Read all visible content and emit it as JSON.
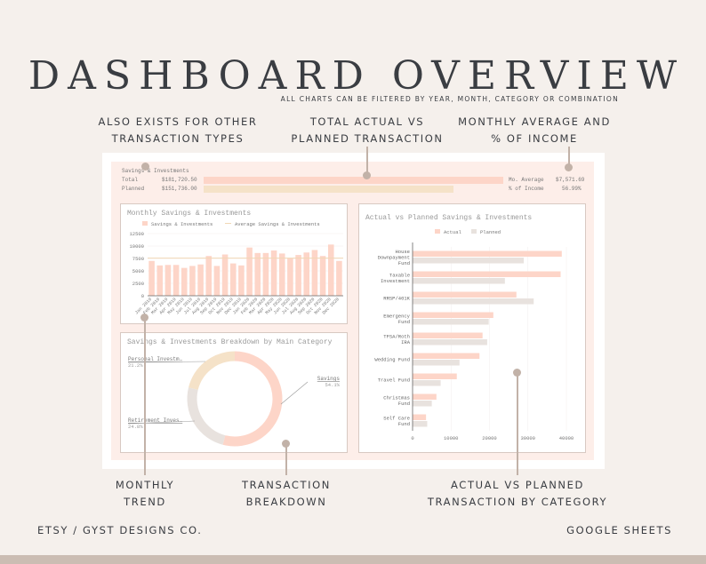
{
  "header": {
    "title": "DASHBOARD OVERVIEW",
    "subtitle": "ALL CHARTS CAN BE FILTERED BY YEAR, MONTH, CATEGORY OR COMBINATION"
  },
  "annotations": {
    "top_left": [
      "ALSO EXISTS FOR OTHER",
      "TRANSACTION TYPES"
    ],
    "top_mid": [
      "TOTAL ACTUAL VS",
      "PLANNED TRANSACTION"
    ],
    "top_right": [
      "MONTHLY AVERAGE AND",
      "% OF INCOME"
    ],
    "bottom_left": [
      "MONTHLY",
      "TREND"
    ],
    "bottom_mid": [
      "TRANSACTION",
      "BREAKDOWN"
    ],
    "bottom_right": [
      "ACTUAL VS PLANNED",
      "TRANSACTION BY CATEGORY"
    ]
  },
  "footer": {
    "left": "ETSY / GYST DESIGNS CO.",
    "right": "GOOGLE SHEETS"
  },
  "summary": {
    "section": "Savings & Investments",
    "total_label": "Total",
    "total_value": "$181,720.50",
    "planned_label": "Planned",
    "planned_value": "$151,736.00",
    "avg_label": "Mo. Average",
    "avg_value": "$7,571.69",
    "income_label": "% of Income",
    "income_value": "56.99%",
    "planned_fraction": 0.835
  },
  "colors": {
    "actual": "#fdd5c8",
    "planned": "#f5e2c8",
    "grey": "#e8e2de",
    "avg_line": "#f1d7b5"
  },
  "chart_data": [
    {
      "type": "bar",
      "title": "Monthly Savings & Investments",
      "legend": [
        "Savings & Investments",
        "Average Savings & Investments"
      ],
      "ylim": [
        0,
        12500
      ],
      "yticks": [
        0,
        2500,
        5000,
        7500,
        10000,
        12500
      ],
      "average": 7571.69,
      "categories": [
        "Jan 2019",
        "Feb 2019",
        "Mar 2019",
        "Apr 2019",
        "May 2019",
        "Jun 2019",
        "Jul 2019",
        "Aug 2019",
        "Sep 2019",
        "Oct 2019",
        "Nov 2019",
        "Dec 2019",
        "Jan 2020",
        "Feb 2020",
        "Mar 2020",
        "Apr 2020",
        "May 2020",
        "Jun 2020",
        "Jul 2020",
        "Aug 2020",
        "Sep 2020",
        "Oct 2020",
        "Nov 2020",
        "Dec 2020"
      ],
      "values": [
        7000,
        6100,
        6200,
        6200,
        5600,
        6000,
        6300,
        8000,
        6000,
        8300,
        6500,
        6100,
        9700,
        8600,
        8600,
        9100,
        8500,
        7600,
        8200,
        8700,
        9200,
        8000,
        10300,
        7000
      ]
    },
    {
      "type": "pie",
      "title": "Savings & Investments Breakdown by Main Category",
      "slices": [
        {
          "label": "Savings",
          "pct": "54.1%",
          "value": 54.1
        },
        {
          "label": "Retirement Inves…",
          "pct": "24.8%",
          "value": 24.8
        },
        {
          "label": "Personal Investm…",
          "pct": "21.2%",
          "value": 21.2
        }
      ]
    },
    {
      "type": "bar",
      "title": "Actual vs Planned Savings & Investments",
      "legend": [
        "Actual",
        "Planned"
      ],
      "xlim": [
        0,
        40000
      ],
      "xticks": [
        0,
        10000,
        20000,
        30000,
        40000
      ],
      "categories": [
        [
          "House",
          "Downpayment",
          "Fund"
        ],
        [
          "Taxable",
          "Investment"
        ],
        [
          "RRSP/401K"
        ],
        [
          "Emergency",
          "Fund"
        ],
        [
          "TFSA/Roth",
          "IRA"
        ],
        [
          "Wedding Fund"
        ],
        [
          "Travel Fund"
        ],
        [
          "Christmas",
          "Fund"
        ],
        [
          "Self Care",
          "Fund"
        ]
      ],
      "series": [
        {
          "name": "Actual",
          "values": [
            38800,
            38500,
            27000,
            21000,
            18200,
            17400,
            11500,
            6200,
            3500
          ]
        },
        {
          "name": "Planned",
          "values": [
            28900,
            24000,
            31500,
            19800,
            19400,
            12200,
            7300,
            5000,
            3800
          ]
        }
      ]
    }
  ]
}
